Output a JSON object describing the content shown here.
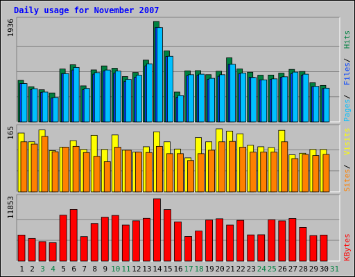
{
  "chart_data": {
    "type": "bar",
    "title": "Daily usage for November 2007",
    "days": [
      "1",
      "2",
      "3",
      "4",
      "5",
      "6",
      "7",
      "8",
      "9",
      "10",
      "11",
      "12",
      "13",
      "14",
      "15",
      "16",
      "17",
      "18",
      "19",
      "20",
      "21",
      "22",
      "23",
      "24",
      "25",
      "26",
      "27",
      "28",
      "29",
      "30",
      "31"
    ],
    "weekend_days": [
      "3",
      "4",
      "10",
      "11",
      "17",
      "18",
      "24",
      "25",
      "31"
    ],
    "panels": [
      {
        "key": "hits",
        "max_label": "1936",
        "ymax": 1936,
        "side_labels": [
          {
            "text": "Pages",
            "color": "#00c0ff"
          },
          {
            "text": "Files",
            "color": "#0040ff"
          },
          {
            "text": "Hits",
            "color": "#008040"
          }
        ],
        "series": [
          {
            "name": "Hits",
            "color": "#008040",
            "values": [
              800,
              678,
              620,
              558,
              1020,
              1102,
              695,
              1002,
              1079,
              1034,
              874,
              953,
              1191,
              1936,
              1369,
              575,
              984,
              988,
              911,
              977,
              1236,
              1021,
              958,
              900,
              903,
              940,
              1012,
              972,
              755,
              703,
              null
            ]
          },
          {
            "name": "Files",
            "color": "#0040ff",
            "values": [
              740,
              620,
              570,
              460,
              930,
              1000,
              620,
              920,
              980,
              940,
              780,
              860,
              1080,
              1820,
              1260,
              470,
              890,
              900,
              820,
              880,
              1110,
              930,
              860,
              810,
              820,
              860,
              930,
              900,
              680,
              640,
              null
            ]
          },
          {
            "name": "Pages",
            "color": "#00c0ff",
            "values": [
              740,
              640,
              575,
              470,
              930,
              1050,
              645,
              950,
              1000,
              980,
              820,
              900,
              1120,
              1820,
              1265,
              510,
              910,
              920,
              840,
              910,
              1110,
              940,
              855,
              810,
              830,
              870,
              960,
              920,
              685,
              650,
              null
            ]
          }
        ]
      },
      {
        "key": "visits",
        "max_label": "165",
        "ymax": 165,
        "side_labels": [
          {
            "text": "Sites",
            "color": "#ff8000"
          },
          {
            "text": "Visits",
            "color": "#ffff00"
          }
        ],
        "series": [
          {
            "name": "Visits",
            "color": "#ffff00",
            "values": [
              154,
              131,
              162,
              108,
              117,
              134,
              111,
              148,
              111,
              149,
              109,
              104,
              118,
              157,
              131,
              112,
              89,
              142,
              131,
              165,
              159,
              152,
              122,
              118,
              116,
              161,
              97,
              101,
              111,
              111,
              null
            ]
          },
          {
            "name": "Sites",
            "color": "#ff8000",
            "values": [
              131,
              125,
              145,
              105,
              117,
              119,
              103,
              93,
              79,
              117,
              109,
              104,
              103,
              119,
              100,
              100,
              82,
              100,
              109,
              131,
              132,
              117,
              104,
              104,
              104,
              131,
              87,
              98,
              95,
              98,
              null
            ]
          }
        ]
      },
      {
        "key": "kbytes",
        "max_label": "11853",
        "ymax": 11853,
        "side_labels": [
          {
            "text": "KBytes",
            "color": "#ff0000"
          }
        ],
        "series": [
          {
            "name": "KBytes",
            "color": "#ff0000",
            "values": [
              4950,
              4300,
              3700,
              3500,
              8730,
              9820,
              4650,
              7150,
              8350,
              8680,
              6850,
              7660,
              8130,
              11853,
              9800,
              7450,
              4680,
              5720,
              7800,
              8050,
              6850,
              7750,
              4980,
              5010,
              7860,
              7650,
              8100,
              6400,
              4850,
              4950,
              null
            ]
          }
        ]
      }
    ]
  }
}
